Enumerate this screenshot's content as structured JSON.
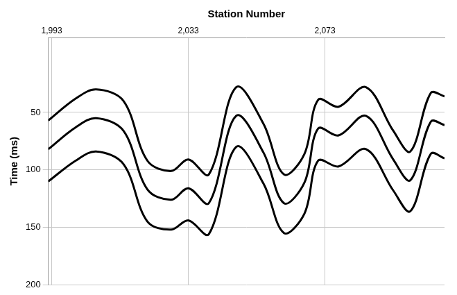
{
  "chart_data": {
    "type": "line",
    "x_label": "Station Number",
    "y_label": "Time (ms)",
    "x": [
      1992,
      2000,
      2006,
      2014,
      2021,
      2028,
      2033,
      2039,
      2047,
      2055,
      2061,
      2067,
      2071,
      2077,
      2085,
      2093,
      2098,
      2104,
      2108
    ],
    "series": [
      {
        "color": "#000000",
        "values": [
          57,
          38,
          30,
          40,
          92,
          101,
          91,
          104,
          28,
          60,
          104,
          86,
          39,
          45,
          28,
          66,
          84,
          33,
          36
        ]
      },
      {
        "color": "#000000",
        "values": [
          82,
          63,
          55,
          66,
          117,
          126,
          116,
          129,
          53,
          85,
          129,
          111,
          64,
          70,
          53,
          91,
          109,
          58,
          61
        ]
      },
      {
        "color": "#000000",
        "values": [
          110,
          92,
          84,
          95,
          145,
          152,
          144,
          156,
          80,
          112,
          155,
          138,
          92,
          97,
          82,
          118,
          136,
          86,
          90
        ]
      }
    ],
    "xlim": [
      1992,
      2108
    ],
    "xticks": [
      1993,
      2033,
      2073
    ],
    "ylim": [
      -15,
      200
    ],
    "yticks": [
      50,
      100,
      150,
      200
    ],
    "grid": true
  }
}
